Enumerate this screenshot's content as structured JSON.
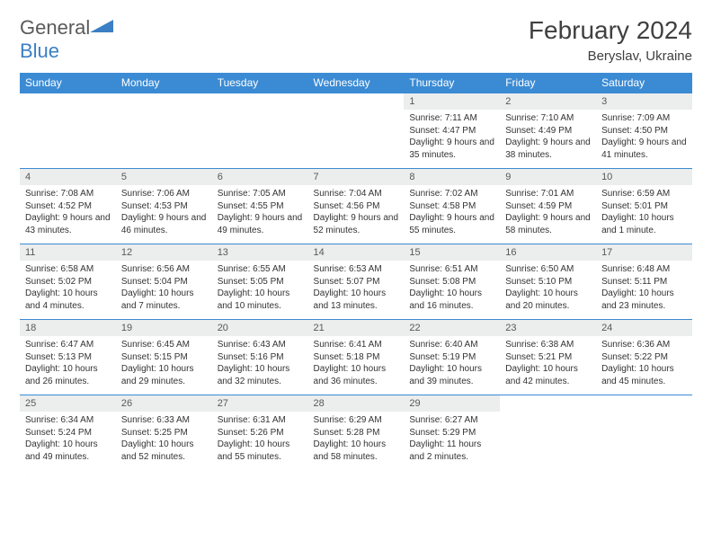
{
  "logo": {
    "prefix": "General",
    "suffix": "Blue"
  },
  "title": "February 2024",
  "location": "Beryslav, Ukraine",
  "colors": {
    "header_bg": "#3b8bd4",
    "header_text": "#ffffff",
    "daynum_bg": "#eceded",
    "rule": "#3b8bd4",
    "logo_gray": "#5a5a5a",
    "logo_blue": "#3b7fc4"
  },
  "weekdays": [
    "Sunday",
    "Monday",
    "Tuesday",
    "Wednesday",
    "Thursday",
    "Friday",
    "Saturday"
  ],
  "weeks": [
    [
      null,
      null,
      null,
      null,
      {
        "n": "1",
        "sr": "7:11 AM",
        "ss": "4:47 PM",
        "dl": "9 hours and 35 minutes."
      },
      {
        "n": "2",
        "sr": "7:10 AM",
        "ss": "4:49 PM",
        "dl": "9 hours and 38 minutes."
      },
      {
        "n": "3",
        "sr": "7:09 AM",
        "ss": "4:50 PM",
        "dl": "9 hours and 41 minutes."
      }
    ],
    [
      {
        "n": "4",
        "sr": "7:08 AM",
        "ss": "4:52 PM",
        "dl": "9 hours and 43 minutes."
      },
      {
        "n": "5",
        "sr": "7:06 AM",
        "ss": "4:53 PM",
        "dl": "9 hours and 46 minutes."
      },
      {
        "n": "6",
        "sr": "7:05 AM",
        "ss": "4:55 PM",
        "dl": "9 hours and 49 minutes."
      },
      {
        "n": "7",
        "sr": "7:04 AM",
        "ss": "4:56 PM",
        "dl": "9 hours and 52 minutes."
      },
      {
        "n": "8",
        "sr": "7:02 AM",
        "ss": "4:58 PM",
        "dl": "9 hours and 55 minutes."
      },
      {
        "n": "9",
        "sr": "7:01 AM",
        "ss": "4:59 PM",
        "dl": "9 hours and 58 minutes."
      },
      {
        "n": "10",
        "sr": "6:59 AM",
        "ss": "5:01 PM",
        "dl": "10 hours and 1 minute."
      }
    ],
    [
      {
        "n": "11",
        "sr": "6:58 AM",
        "ss": "5:02 PM",
        "dl": "10 hours and 4 minutes."
      },
      {
        "n": "12",
        "sr": "6:56 AM",
        "ss": "5:04 PM",
        "dl": "10 hours and 7 minutes."
      },
      {
        "n": "13",
        "sr": "6:55 AM",
        "ss": "5:05 PM",
        "dl": "10 hours and 10 minutes."
      },
      {
        "n": "14",
        "sr": "6:53 AM",
        "ss": "5:07 PM",
        "dl": "10 hours and 13 minutes."
      },
      {
        "n": "15",
        "sr": "6:51 AM",
        "ss": "5:08 PM",
        "dl": "10 hours and 16 minutes."
      },
      {
        "n": "16",
        "sr": "6:50 AM",
        "ss": "5:10 PM",
        "dl": "10 hours and 20 minutes."
      },
      {
        "n": "17",
        "sr": "6:48 AM",
        "ss": "5:11 PM",
        "dl": "10 hours and 23 minutes."
      }
    ],
    [
      {
        "n": "18",
        "sr": "6:47 AM",
        "ss": "5:13 PM",
        "dl": "10 hours and 26 minutes."
      },
      {
        "n": "19",
        "sr": "6:45 AM",
        "ss": "5:15 PM",
        "dl": "10 hours and 29 minutes."
      },
      {
        "n": "20",
        "sr": "6:43 AM",
        "ss": "5:16 PM",
        "dl": "10 hours and 32 minutes."
      },
      {
        "n": "21",
        "sr": "6:41 AM",
        "ss": "5:18 PM",
        "dl": "10 hours and 36 minutes."
      },
      {
        "n": "22",
        "sr": "6:40 AM",
        "ss": "5:19 PM",
        "dl": "10 hours and 39 minutes."
      },
      {
        "n": "23",
        "sr": "6:38 AM",
        "ss": "5:21 PM",
        "dl": "10 hours and 42 minutes."
      },
      {
        "n": "24",
        "sr": "6:36 AM",
        "ss": "5:22 PM",
        "dl": "10 hours and 45 minutes."
      }
    ],
    [
      {
        "n": "25",
        "sr": "6:34 AM",
        "ss": "5:24 PM",
        "dl": "10 hours and 49 minutes."
      },
      {
        "n": "26",
        "sr": "6:33 AM",
        "ss": "5:25 PM",
        "dl": "10 hours and 52 minutes."
      },
      {
        "n": "27",
        "sr": "6:31 AM",
        "ss": "5:26 PM",
        "dl": "10 hours and 55 minutes."
      },
      {
        "n": "28",
        "sr": "6:29 AM",
        "ss": "5:28 PM",
        "dl": "10 hours and 58 minutes."
      },
      {
        "n": "29",
        "sr": "6:27 AM",
        "ss": "5:29 PM",
        "dl": "11 hours and 2 minutes."
      },
      null,
      null
    ]
  ],
  "labels": {
    "sunrise": "Sunrise:",
    "sunset": "Sunset:",
    "daylight": "Daylight:"
  }
}
